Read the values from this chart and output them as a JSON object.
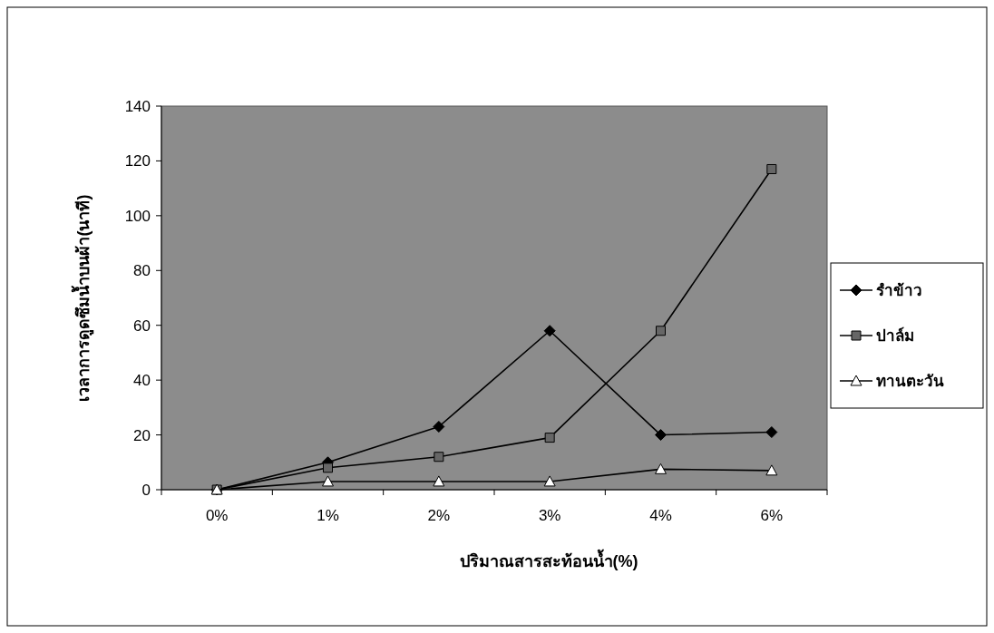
{
  "chart_data": {
    "type": "line",
    "xlabel": "ปริมาณสารสะท้อนน้ำ(%)",
    "ylabel": "เวลาการดูดซึมน้ำบนผ้า(นาที)",
    "categories": [
      "0%",
      "1%",
      "2%",
      "3%",
      "4%",
      "6%"
    ],
    "series": [
      {
        "name": "รำข้าว",
        "color": "#000000",
        "marker": "diamond",
        "values": [
          0,
          10,
          23,
          58,
          20,
          21
        ]
      },
      {
        "name": "ปาล์ม",
        "color": "#000000",
        "marker": "square",
        "values": [
          0,
          8,
          12,
          19,
          58,
          117
        ]
      },
      {
        "name": "ทานตะวัน",
        "color": "#000000",
        "marker": "triangle",
        "values": [
          0,
          3,
          3,
          3,
          7.5,
          7
        ]
      }
    ],
    "ylim": [
      0,
      140
    ],
    "yticks": [
      0,
      20,
      40,
      60,
      80,
      100,
      120,
      140
    ],
    "grid": false,
    "legend": "right",
    "line_style": "solid"
  }
}
